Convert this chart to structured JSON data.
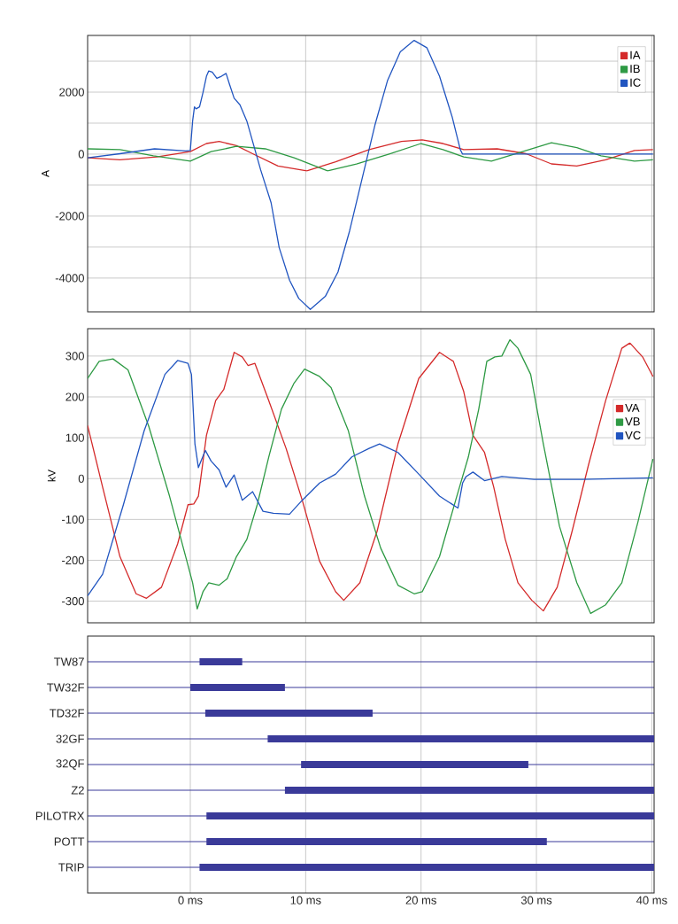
{
  "chart_data": [
    {
      "type": "line",
      "ylabel": "A",
      "xlim": [
        -8.9,
        40.2
      ],
      "ylim": [
        -5090,
        3830
      ],
      "xticks": [
        {
          "value": 0,
          "label": null
        },
        {
          "value": 10,
          "label": null
        },
        {
          "value": 20,
          "label": null
        },
        {
          "value": 30,
          "label": null
        },
        {
          "value": 40,
          "label": null
        }
      ],
      "yticks": [
        -4000,
        {
          "value": -3000,
          "label": null
        },
        -2000,
        {
          "value": -1000,
          "label": null
        },
        0,
        {
          "value": 1000,
          "label": null
        },
        2000,
        {
          "value": 3000,
          "label": null
        }
      ],
      "tick_labels": "y",
      "grid": true,
      "legend": "top right",
      "series": [
        {
          "name": "IA",
          "color": "#d42a2a",
          "x": [
            -8.9,
            -6.1,
            -2.9,
            0,
            1.4,
            2.5,
            4.0,
            5.4,
            7.6,
            10.1,
            12.6,
            15.5,
            18.3,
            20.1,
            21.9,
            23.7,
            26.6,
            29.1,
            31.3,
            33.5,
            36.0,
            38.5,
            40.1
          ],
          "values": [
            -118,
            -184,
            -92,
            79,
            342,
            408,
            276,
            13,
            -382,
            -539,
            -250,
            145,
            408,
            461,
            342,
            145,
            171,
            13,
            -316,
            -382,
            -184,
            118,
            145
          ]
        },
        {
          "name": "IB",
          "color": "#2e9a44",
          "x": [
            -8.9,
            -6.1,
            -3.2,
            0,
            1.8,
            4.0,
            6.5,
            9.0,
            11.9,
            14.4,
            17.3,
            20.0,
            21.9,
            23.7,
            26.1,
            28.8,
            31.3,
            33.5,
            35.6,
            38.5,
            40.1
          ],
          "values": [
            171,
            145,
            -53,
            -224,
            79,
            250,
            171,
            -118,
            -539,
            -316,
            13,
            342,
            145,
            -92,
            -224,
            79,
            368,
            211,
            -53,
            -224,
            -184
          ]
        },
        {
          "name": "IC",
          "color": "#2155c0",
          "x": [
            -8.9,
            -6.1,
            -3.1,
            -0.4,
            0,
            0.2,
            0.36,
            0.5,
            0.8,
            1.1,
            1.4,
            1.6,
            1.9,
            2.3,
            2.7,
            3.1,
            3.4,
            3.8,
            4.3,
            4.9,
            5.4,
            6.1,
            7.0,
            7.7,
            8.6,
            9.4,
            10.4,
            11.7,
            12.8,
            13.8,
            14.9,
            16.0,
            17.1,
            18.2,
            19.4,
            20.5,
            21.6,
            22.7,
            23.4,
            23.6,
            40.1
          ],
          "values": [
            -118,
            13,
            171,
            105,
            118,
            1066,
            1526,
            1460,
            1526,
            1987,
            2513,
            2684,
            2645,
            2447,
            2513,
            2605,
            2250,
            1803,
            1592,
            1066,
            408,
            -513,
            -1566,
            -3013,
            -4066,
            -4658,
            -5013,
            -4592,
            -3803,
            -2487,
            -776,
            934,
            2382,
            3303,
            3671,
            3434,
            2513,
            1197,
            145,
            0,
            0
          ]
        }
      ]
    },
    {
      "type": "line",
      "ylabel": "kV",
      "xlim": [
        -8.9,
        40.2
      ],
      "ylim": [
        -353,
        367
      ],
      "xticks": [
        {
          "value": 0,
          "label": null
        },
        {
          "value": 10,
          "label": null
        },
        {
          "value": 20,
          "label": null
        },
        {
          "value": 30,
          "label": null
        },
        {
          "value": 40,
          "label": null
        }
      ],
      "yticks": [
        -300,
        -200,
        -100,
        0,
        100,
        200,
        300
      ],
      "tick_labels": "y",
      "grid": true,
      "legend": "right",
      "series": [
        {
          "name": "VA",
          "color": "#d42a2a",
          "x": [
            -8.9,
            -7.6,
            -6.1,
            -4.7,
            -3.8,
            -2.5,
            -1.1,
            -0.2,
            0.3,
            0.7,
            1.4,
            2.2,
            2.9,
            3.8,
            4.5,
            5.0,
            5.6,
            6.8,
            8.3,
            9.7,
            11.2,
            12.6,
            13.3,
            14.7,
            16.2,
            18.0,
            19.8,
            21.6,
            22.8,
            23.7,
            24.5,
            25.5,
            26.3,
            27.3,
            28.4,
            29.6,
            30.6,
            31.8,
            33.1,
            34.5,
            36.0,
            37.4,
            38.1,
            39.2,
            40.1
          ],
          "values": [
            130,
            -21,
            -191,
            -282,
            -293,
            -266,
            -160,
            -64,
            -62,
            -43,
            106,
            191,
            218,
            309,
            298,
            277,
            282,
            191,
            74,
            -53,
            -202,
            -277,
            -298,
            -255,
            -128,
            85,
            245,
            309,
            287,
            213,
            106,
            64,
            -21,
            -149,
            -255,
            -298,
            -324,
            -266,
            -128,
            32,
            191,
            319,
            332,
            298,
            250
          ]
        },
        {
          "name": "VB",
          "color": "#2e9a44",
          "x": [
            -8.9,
            -7.9,
            -6.7,
            -5.4,
            -3.6,
            -1.8,
            -0.4,
            0.2,
            0.6,
            1.1,
            1.6,
            2.5,
            3.2,
            4.0,
            4.9,
            5.8,
            6.8,
            7.9,
            9.0,
            9.9,
            11.2,
            12.2,
            13.7,
            15.1,
            16.5,
            18.0,
            19.4,
            20.1,
            21.6,
            23.0,
            24.1,
            25.0,
            25.7,
            26.4,
            27.0,
            27.7,
            28.4,
            29.5,
            30.6,
            32.0,
            33.5,
            34.7,
            36.0,
            37.4,
            38.8,
            40.1
          ],
          "values": [
            245,
            287,
            293,
            266,
            128,
            -43,
            -191,
            -255,
            -319,
            -277,
            -255,
            -261,
            -245,
            -191,
            -149,
            -64,
            53,
            170,
            234,
            268,
            250,
            223,
            117,
            -43,
            -170,
            -261,
            -282,
            -277,
            -191,
            -53,
            53,
            170,
            287,
            298,
            300,
            340,
            319,
            255,
            85,
            -117,
            -255,
            -330,
            -309,
            -255,
            -106,
            48
          ]
        },
        {
          "name": "VC",
          "color": "#2155c0",
          "x": [
            -8.9,
            -7.6,
            -5.8,
            -4.0,
            -2.2,
            -1.1,
            -0.2,
            0.1,
            0.4,
            0.7,
            1.3,
            1.8,
            2.5,
            3.1,
            3.8,
            4.5,
            5.4,
            6.3,
            7.2,
            8.6,
            9.7,
            11.2,
            12.6,
            14.0,
            15.5,
            16.4,
            18.0,
            19.8,
            21.6,
            23.2,
            23.6,
            23.9,
            24.5,
            25.5,
            27.0,
            29.8,
            34.0,
            40.1
          ],
          "values": [
            -287,
            -234,
            -64,
            117,
            255,
            289,
            282,
            255,
            85,
            27,
            69,
            43,
            21,
            -21,
            9,
            -53,
            -32,
            -80,
            -85,
            -87,
            -53,
            -11,
            11,
            53,
            74,
            85,
            64,
            11,
            -43,
            -72,
            -11,
            5,
            16,
            -5,
            5,
            -2,
            -2,
            2
          ]
        }
      ]
    },
    {
      "type": "bar",
      "orientation": "horizontal",
      "color": "#3a3a99",
      "grid": true,
      "xlim": [
        -8.9,
        40.2
      ],
      "xticks": [
        {
          "value": 0,
          "label": "0 ms"
        },
        {
          "value": 10,
          "label": "10 ms"
        },
        {
          "value": 20,
          "label": "20 ms"
        },
        {
          "value": 30,
          "label": "30 ms"
        },
        {
          "value": 40,
          "label": "40 ms"
        }
      ],
      "categories": [
        "TW87",
        "TW32F",
        "TD32F",
        "32GF",
        "32QF",
        "Z2",
        "PILOTRX",
        "POTT",
        "TRIP"
      ],
      "base": [
        0.8,
        0,
        1.3,
        6.7,
        9.6,
        8.2,
        1.4,
        1.4,
        0.8
      ],
      "values": [
        3.7,
        8.2,
        14.5,
        33.5,
        19.7,
        32.0,
        38.8,
        29.5,
        39.4
      ]
    }
  ]
}
